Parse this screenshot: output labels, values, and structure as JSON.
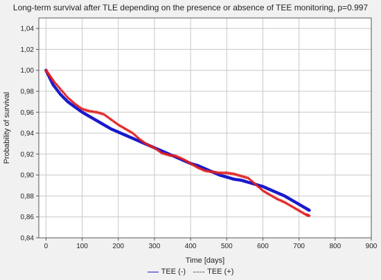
{
  "chart_data": {
    "type": "line",
    "title": "Long-term survival after TLE depending on the presence or absence of TEE monitoring, p=0.997",
    "xlabel": "Time [days]",
    "ylabel": "Probability of survival",
    "xlim": [
      -20,
      900
    ],
    "ylim": [
      0.84,
      1.05
    ],
    "xticks": [
      0,
      100,
      200,
      300,
      400,
      500,
      600,
      700,
      800,
      900
    ],
    "yticks": [
      0.84,
      0.86,
      0.88,
      0.9,
      0.92,
      0.94,
      0.96,
      0.98,
      1.0,
      1.02,
      1.04
    ],
    "ytick_labels": [
      "0,84",
      "0,86",
      "0,88",
      "0,90",
      "0,92",
      "0,94",
      "0,96",
      "0,98",
      "1,00",
      "1,02",
      "1,04"
    ],
    "grid": true,
    "legend_position": "bottom",
    "series": [
      {
        "name": "TEE (-)",
        "color": "#1a1acc",
        "style": "solid",
        "x": [
          0,
          10,
          20,
          40,
          60,
          80,
          100,
          120,
          140,
          160,
          180,
          200,
          220,
          240,
          260,
          280,
          300,
          320,
          340,
          360,
          380,
          400,
          420,
          440,
          460,
          480,
          500,
          520,
          540,
          560,
          580,
          600,
          620,
          640,
          660,
          680,
          700,
          720,
          730
        ],
        "y": [
          1.0,
          0.993,
          0.986,
          0.977,
          0.97,
          0.965,
          0.96,
          0.956,
          0.952,
          0.948,
          0.944,
          0.941,
          0.938,
          0.935,
          0.932,
          0.929,
          0.926,
          0.923,
          0.92,
          0.917,
          0.914,
          0.911,
          0.909,
          0.906,
          0.903,
          0.9,
          0.898,
          0.896,
          0.895,
          0.893,
          0.891,
          0.889,
          0.886,
          0.883,
          0.88,
          0.876,
          0.872,
          0.868,
          0.866
        ]
      },
      {
        "name": "TEE (+)",
        "color": "#e02020",
        "style": "dashed",
        "x": [
          0,
          10,
          20,
          40,
          60,
          80,
          100,
          120,
          140,
          160,
          180,
          200,
          220,
          240,
          260,
          280,
          300,
          320,
          340,
          360,
          380,
          400,
          420,
          440,
          460,
          480,
          500,
          520,
          540,
          560,
          580,
          600,
          620,
          640,
          660,
          680,
          700,
          720,
          730
        ],
        "y": [
          1.0,
          0.995,
          0.99,
          0.982,
          0.974,
          0.968,
          0.963,
          0.961,
          0.96,
          0.958,
          0.953,
          0.948,
          0.944,
          0.94,
          0.934,
          0.929,
          0.926,
          0.921,
          0.919,
          0.918,
          0.915,
          0.911,
          0.907,
          0.904,
          0.903,
          0.902,
          0.902,
          0.901,
          0.899,
          0.897,
          0.891,
          0.885,
          0.881,
          0.877,
          0.874,
          0.87,
          0.866,
          0.862,
          0.861
        ]
      }
    ]
  }
}
